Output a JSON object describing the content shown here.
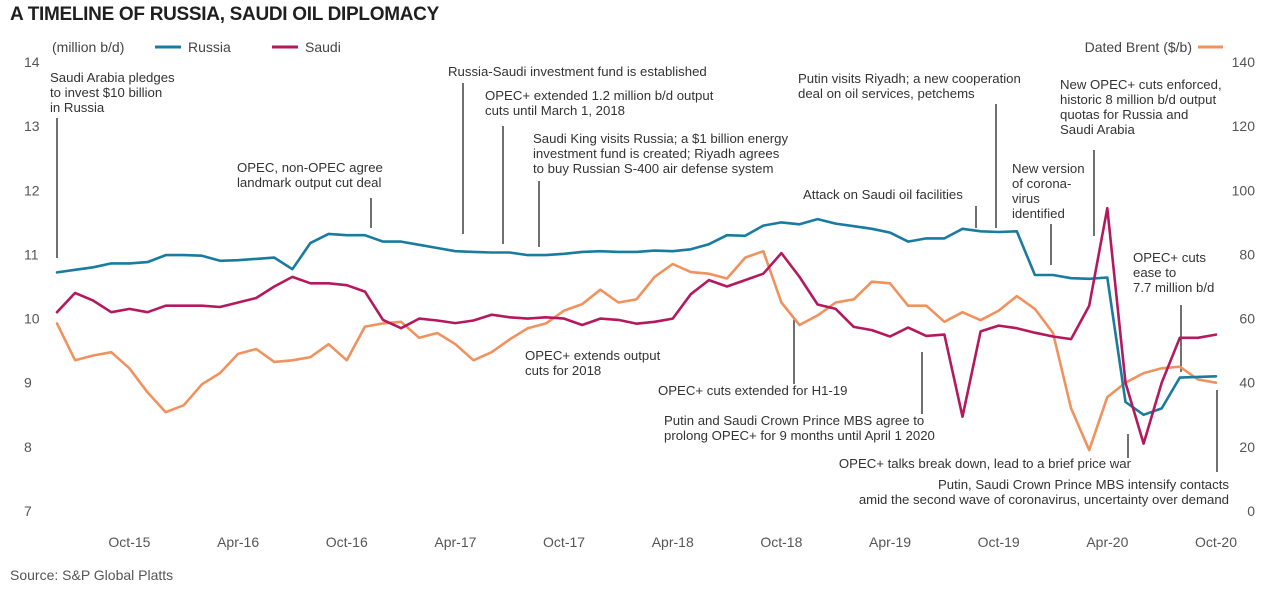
{
  "title": "A TIMELINE OF RUSSIA, SAUDI OIL DIPLOMACY",
  "source": "Source: S&P Global Platts",
  "chart_data": {
    "type": "line",
    "ylabel_left": "(million b/d)",
    "ylabel_right": "Dated Brent ($/b)",
    "ylim_left": [
      7,
      14
    ],
    "ylim_right": [
      0,
      140
    ],
    "yticks_left": [
      "7",
      "8",
      "9",
      "10",
      "11",
      "12",
      "13",
      "14"
    ],
    "yticks_right": [
      "0",
      "20",
      "40",
      "60",
      "80",
      "100",
      "120",
      "140"
    ],
    "xticks": [
      {
        "label": "Oct-15",
        "t": 4
      },
      {
        "label": "Apr-16",
        "t": 10
      },
      {
        "label": "Oct-16",
        "t": 16
      },
      {
        "label": "Apr-17",
        "t": 22
      },
      {
        "label": "Oct-17",
        "t": 28
      },
      {
        "label": "Apr-18",
        "t": 34
      },
      {
        "label": "Oct-18",
        "t": 40
      },
      {
        "label": "Apr-19",
        "t": 46
      },
      {
        "label": "Oct-19",
        "t": 52
      },
      {
        "label": "Apr-20",
        "t": 58
      },
      {
        "label": "Oct-20",
        "t": 64
      }
    ],
    "x_note": "monthly index t; t=0 is Jun-2015, t=64 is Oct-2020",
    "series": [
      {
        "name": "Russia",
        "axis": "left",
        "color": "#1a7ba0",
        "values": [
          10.72,
          10.76,
          10.8,
          10.86,
          10.86,
          10.88,
          10.99,
          10.99,
          10.98,
          10.9,
          10.91,
          10.93,
          10.95,
          10.77,
          11.18,
          11.32,
          11.3,
          11.3,
          11.2,
          11.2,
          11.15,
          11.1,
          11.05,
          11.04,
          11.03,
          11.03,
          10.99,
          10.99,
          11.01,
          11.04,
          11.05,
          11.04,
          11.04,
          11.06,
          11.05,
          11.08,
          11.16,
          11.3,
          11.29,
          11.45,
          11.5,
          11.47,
          11.55,
          11.48,
          11.44,
          11.4,
          11.34,
          11.2,
          11.25,
          11.25,
          11.4,
          11.36,
          11.35,
          11.36,
          10.68,
          10.68,
          10.63,
          10.62,
          10.64,
          8.7,
          8.5,
          8.6,
          9.08,
          9.09,
          9.1
        ]
      },
      {
        "name": "Saudi",
        "axis": "left",
        "color": "#b5195d",
        "values": [
          10.1,
          10.4,
          10.28,
          10.1,
          10.15,
          10.1,
          10.2,
          10.2,
          10.2,
          10.18,
          10.25,
          10.32,
          10.5,
          10.65,
          10.55,
          10.55,
          10.52,
          10.42,
          9.98,
          9.85,
          10.0,
          9.97,
          9.93,
          9.97,
          10.06,
          10.02,
          10.0,
          10.02,
          10.0,
          9.9,
          10.0,
          9.98,
          9.92,
          9.95,
          10.0,
          10.38,
          10.6,
          10.5,
          10.6,
          10.7,
          11.02,
          10.65,
          10.22,
          10.15,
          9.87,
          9.82,
          9.72,
          9.86,
          9.73,
          9.75,
          8.47,
          9.8,
          9.89,
          9.85,
          9.78,
          9.72,
          9.68,
          10.2,
          11.72,
          9.0,
          8.05,
          9.0,
          9.7,
          9.7,
          9.75
        ]
      },
      {
        "name": "Dated Brent ($/b)",
        "axis": "right",
        "color": "#f0925e",
        "values": [
          58.5,
          47,
          48.5,
          49.5,
          44.5,
          37,
          30.8,
          33,
          39.5,
          43,
          49,
          50.5,
          46.5,
          47,
          48,
          52,
          47,
          57.5,
          58.5,
          59,
          54,
          55.5,
          52,
          47,
          49.5,
          53.5,
          57,
          58.5,
          62.5,
          64.5,
          69,
          65,
          66,
          73,
          77,
          74.5,
          74,
          72.5,
          79,
          81,
          65,
          58,
          61,
          65,
          66,
          71.5,
          71,
          64,
          64,
          59,
          62,
          59.5,
          62.5,
          67,
          63,
          55.5,
          32,
          19,
          35.5,
          40,
          43,
          44.5,
          45,
          41,
          40
        ]
      }
    ],
    "annotations": [
      {
        "lines": [
          "Saudi Arabia pledges",
          "to invest $10 billion",
          "in Russia"
        ],
        "t": 0.5,
        "value": 10.72
      },
      {
        "lines": [
          "OPEC, non-OPEC agree",
          "landmark output cut deal"
        ],
        "t": 17.5,
        "value": 11.3
      },
      {
        "lines": [
          "Russia-Saudi investment fund is established"
        ],
        "t": 22.7,
        "value": 11.04
      },
      {
        "lines": [
          "OPEC+ extended 1.2 million b/d output",
          "cuts until March 1, 2018"
        ],
        "t": 25.5,
        "value": 11.03
      },
      {
        "lines": [
          "Saudi King visits Russia; a $1 billion energy",
          "investment fund is created; Riyadh agrees",
          "to buy Russian S-400 air defense system"
        ],
        "t": 28.3,
        "value": 10.99
      },
      {
        "lines": [
          "OPEC+ extends output",
          "cuts for 2018"
        ],
        "t": 28.5,
        "value": 10.0
      },
      {
        "lines": [
          "OPEC+ cuts extended for H1-19"
        ],
        "t": 40.3,
        "value": 10.65
      },
      {
        "lines": [
          "Attack on Saudi oil facilities"
        ],
        "t": 50.8,
        "value": 11.38
      },
      {
        "lines": [
          "Putin visits Riyadh; a new cooperation",
          "deal on oil services, petchems"
        ],
        "t": 52.5,
        "value": 11.36
      },
      {
        "lines": [
          "Putin and Saudi Crown Prince MBS agree to",
          "prolong OPEC+ for 9 months until April 1 2020"
        ],
        "t": 47.5,
        "value": 9.86
      },
      {
        "lines": [
          "New version",
          "of corona-",
          "virus",
          "identified"
        ],
        "t": 54.8,
        "value": 10.68
      },
      {
        "lines": [
          "New OPEC+ cuts enforced,",
          "historic 8 million b/d output",
          "quotas for Russia and",
          "Saudi Arabia"
        ],
        "t": 57.5,
        "value": 11.3
      },
      {
        "lines": [
          "OPEC+ talks break down, lead to a brief price war"
        ],
        "t": 59.2,
        "value": 8.3
      },
      {
        "lines": [
          "OPEC+ cuts",
          "ease to",
          "7.7 million b/d"
        ],
        "t": 62.0,
        "value": 9.1
      },
      {
        "lines": [
          "Putin, Saudi Crown Prince MBS intensify contacts",
          "amid the second wave of coronavirus, uncertainty over demand"
        ],
        "t": 64.0,
        "value": 9.05
      }
    ]
  }
}
